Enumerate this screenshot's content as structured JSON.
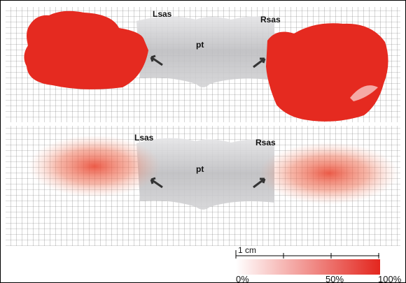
{
  "panels": [
    {
      "left_label": "Lsas",
      "right_label": "Rsas",
      "center_label": "pt"
    },
    {
      "left_label": "Lsas",
      "right_label": "Rsas",
      "center_label": "pt"
    }
  ],
  "scale_bar": {
    "label": "1 cm"
  },
  "colorbar": {
    "labels": [
      "0%",
      "50%",
      "100%"
    ]
  }
}
